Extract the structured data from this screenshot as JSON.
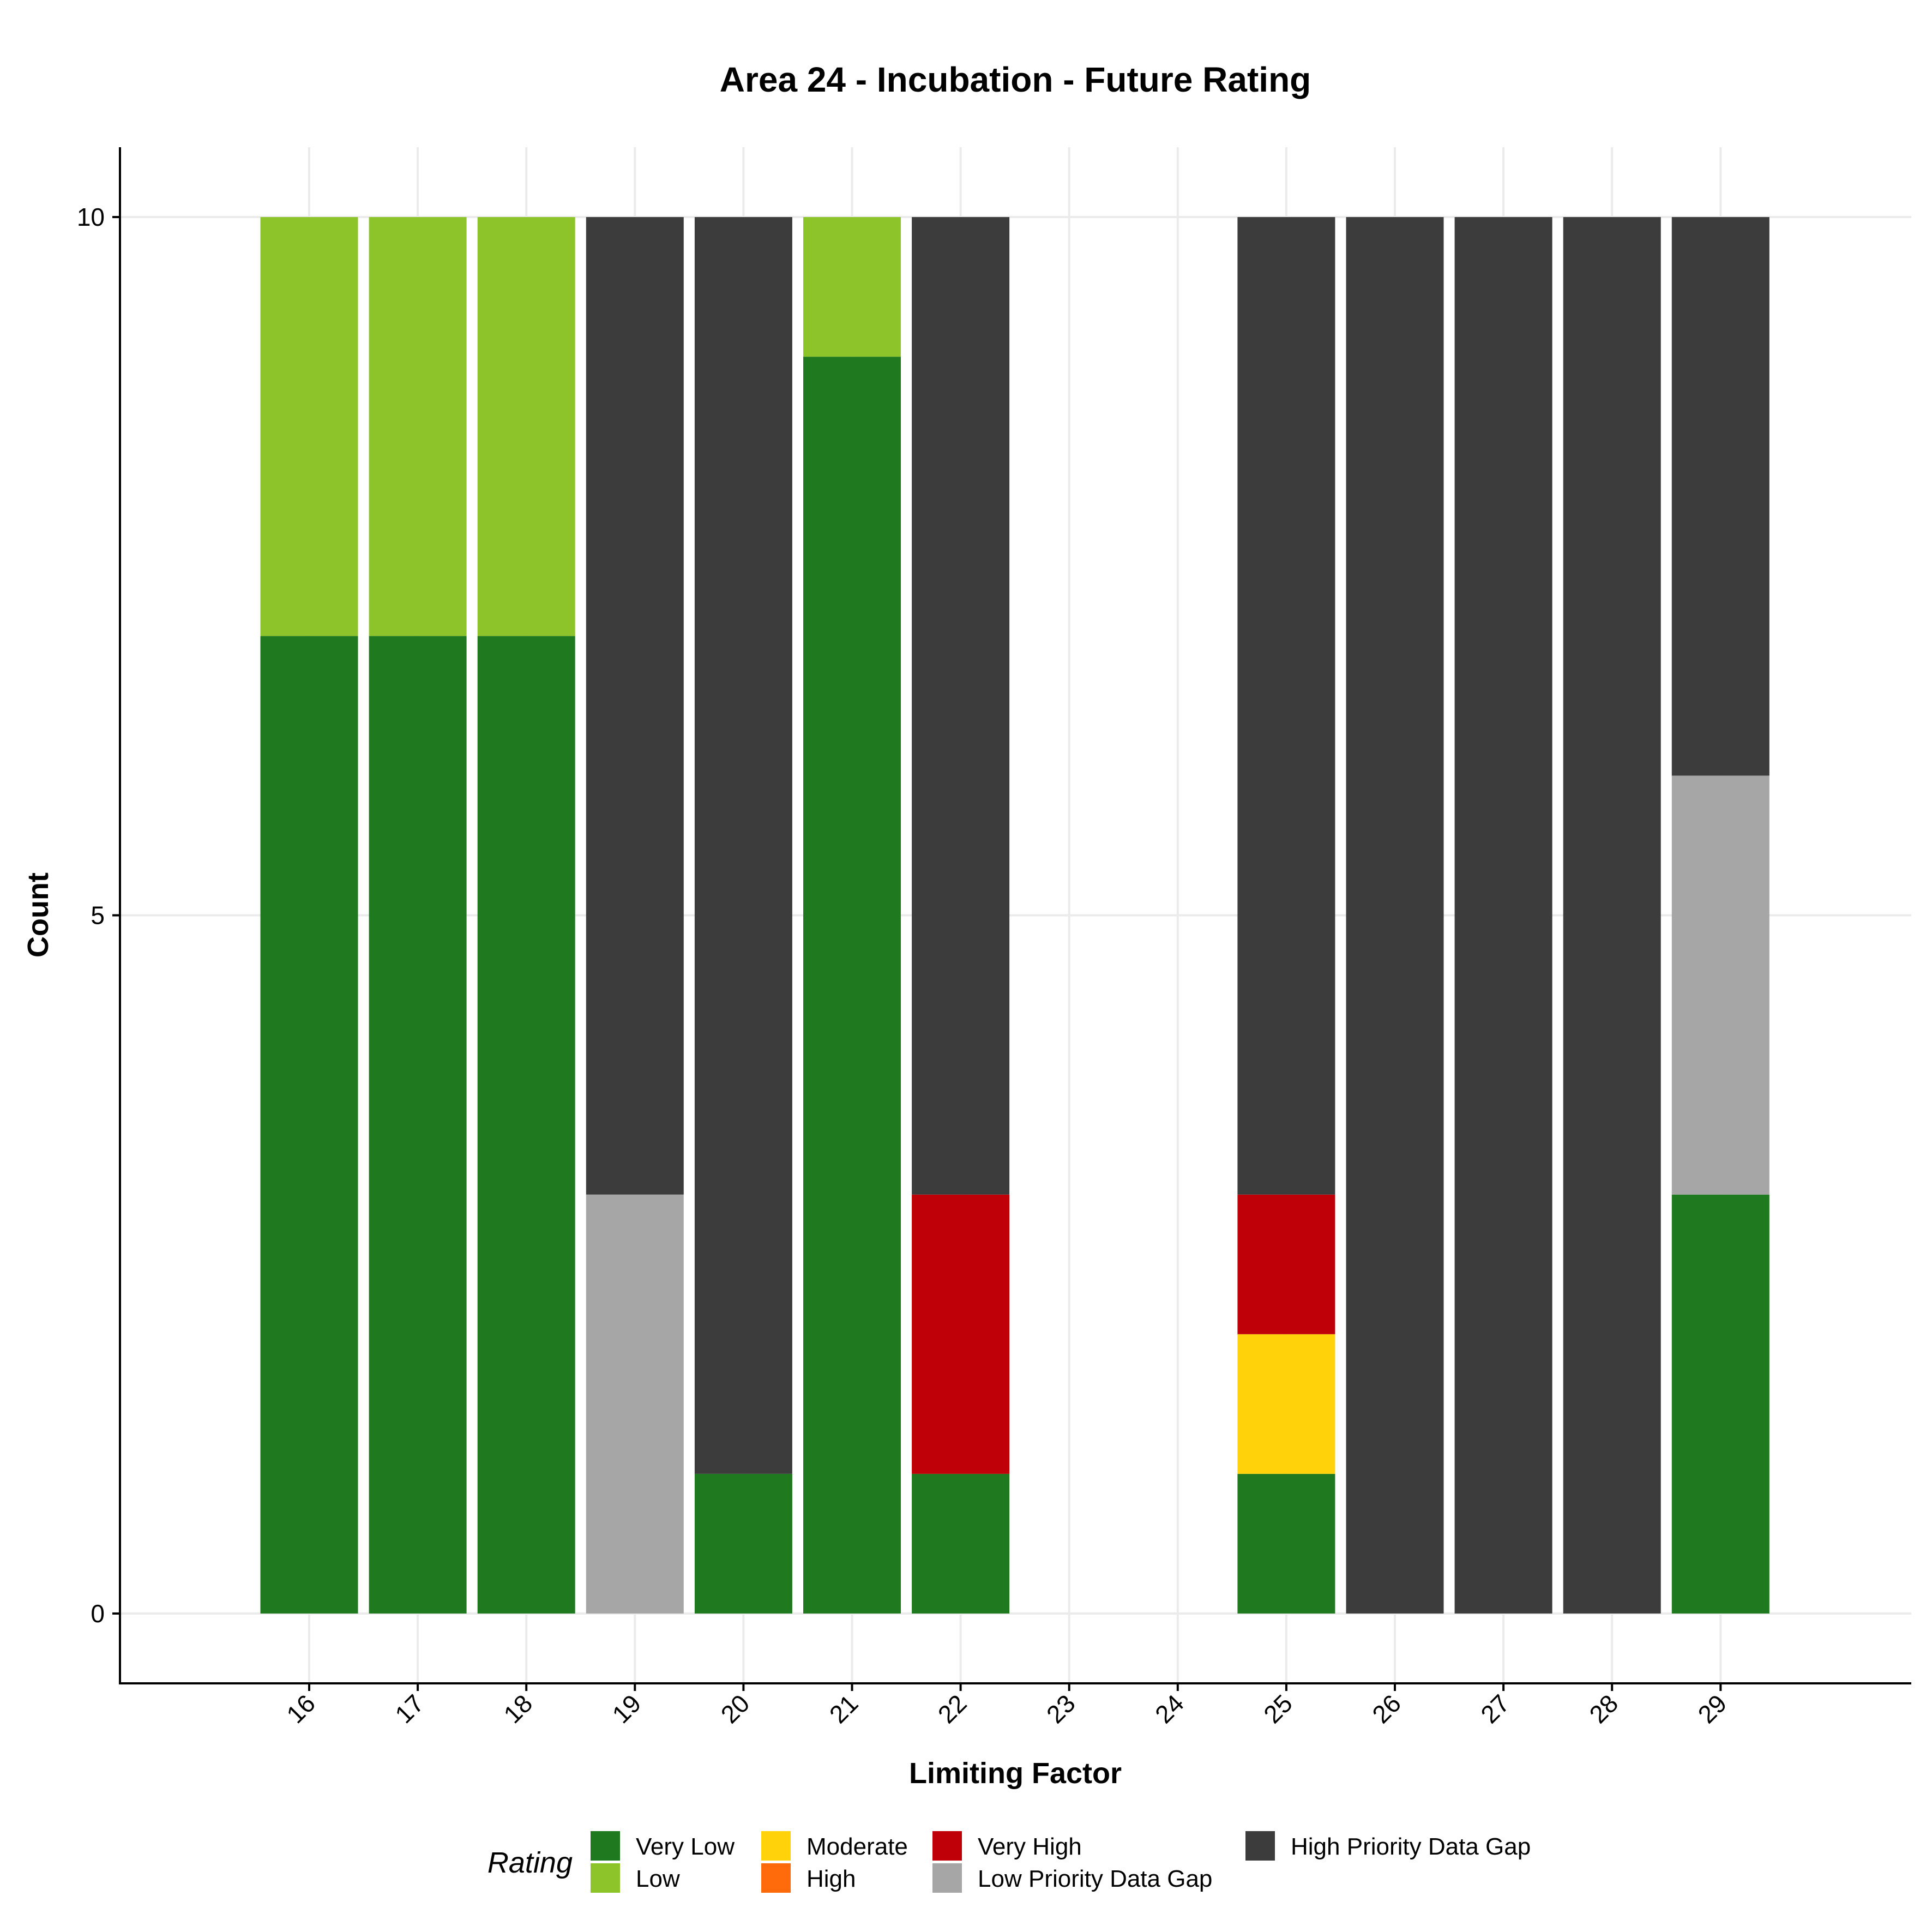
{
  "chart_data": {
    "type": "bar",
    "stacked": true,
    "title": "Area 24 - Incubation - Future Rating",
    "xlabel": "Limiting Factor",
    "ylabel": "Count",
    "ylim": [
      -0.5,
      10.5
    ],
    "yticks": [
      "0",
      "5",
      "10"
    ],
    "categories": [
      "16",
      "17",
      "18",
      "19",
      "20",
      "21",
      "22",
      "23",
      "24",
      "25",
      "26",
      "27",
      "28",
      "29"
    ],
    "grid": true,
    "legend_title": "Rating",
    "legend_position": "bottom",
    "series": [
      {
        "name": "Very Low",
        "color": "#1f7a1f",
        "values": [
          7,
          7,
          7,
          0,
          1,
          9,
          1,
          0,
          0,
          1,
          0,
          0,
          0,
          3
        ]
      },
      {
        "name": "Low",
        "color": "#8cc42a",
        "values": [
          3,
          3,
          3,
          0,
          0,
          1,
          0,
          0,
          0,
          0,
          0,
          0,
          0,
          0
        ]
      },
      {
        "name": "Moderate",
        "color": "#ffd20a",
        "values": [
          0,
          0,
          0,
          0,
          0,
          0,
          0,
          0,
          0,
          1,
          0,
          0,
          0,
          0
        ]
      },
      {
        "name": "High",
        "color": "#ff6a0a",
        "values": [
          0,
          0,
          0,
          0,
          0,
          0,
          0,
          0,
          0,
          0,
          0,
          0,
          0,
          0
        ]
      },
      {
        "name": "Very High",
        "color": "#c00008",
        "values": [
          0,
          0,
          0,
          0,
          0,
          0,
          2,
          0,
          0,
          1,
          0,
          0,
          0,
          0
        ]
      },
      {
        "name": "Low Priority Data Gap",
        "color": "#a6a6a6",
        "values": [
          0,
          0,
          0,
          3,
          0,
          0,
          0,
          0,
          0,
          0,
          0,
          0,
          0,
          3
        ]
      },
      {
        "name": "High Priority Data Gap",
        "color": "#3c3c3c",
        "values": [
          0,
          0,
          0,
          7,
          9,
          0,
          7,
          0,
          0,
          7,
          10,
          10,
          10,
          4
        ]
      }
    ]
  }
}
